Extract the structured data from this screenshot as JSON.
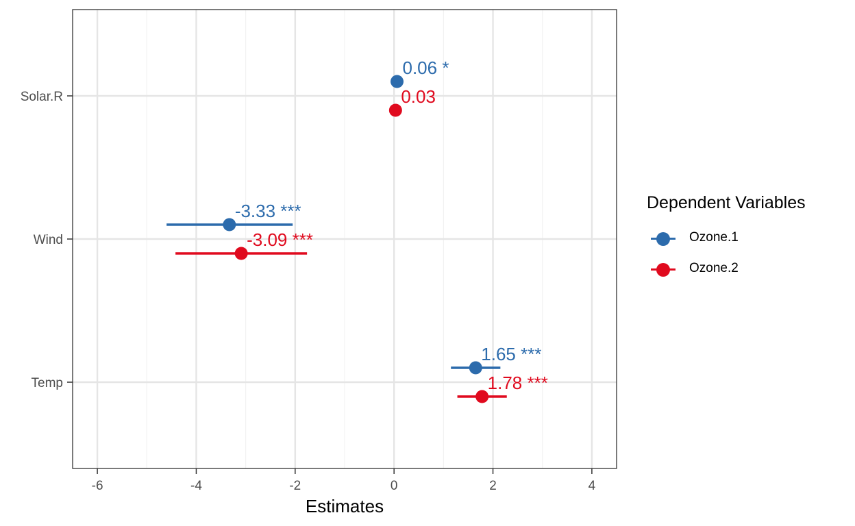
{
  "chart_data": {
    "type": "scatter",
    "subtype": "coefficient-plot",
    "xlabel": "Estimates",
    "ylabel": "",
    "xlim": [
      -6.5,
      4.5
    ],
    "x_ticks": [
      -6,
      -4,
      -2,
      0,
      2,
      4
    ],
    "x_tick_labels": [
      "-6",
      "-4",
      "-2",
      "0",
      "2",
      "4"
    ],
    "categories": [
      "Solar.R",
      "Wind",
      "Temp"
    ],
    "grid": true,
    "legend_position": "right",
    "legend_title": "Dependent Variables",
    "series": [
      {
        "name": "Ozone.1",
        "color": "#2C6BAC",
        "estimates": [
          0.06,
          -3.33,
          1.65
        ],
        "ci_low": [
          0.02,
          -4.6,
          1.15
        ],
        "ci_high": [
          0.1,
          -2.05,
          2.15
        ],
        "labels": [
          "0.06 *",
          "-3.33 ***",
          "1.65 ***"
        ]
      },
      {
        "name": "Ozone.2",
        "color": "#E00A1E",
        "estimates": [
          0.03,
          -3.09,
          1.78
        ],
        "ci_low": [
          -0.01,
          -4.42,
          1.28
        ],
        "ci_high": [
          0.07,
          -1.76,
          2.28
        ],
        "labels": [
          "0.03",
          "-3.09 ***",
          "1.78 ***"
        ]
      }
    ]
  }
}
